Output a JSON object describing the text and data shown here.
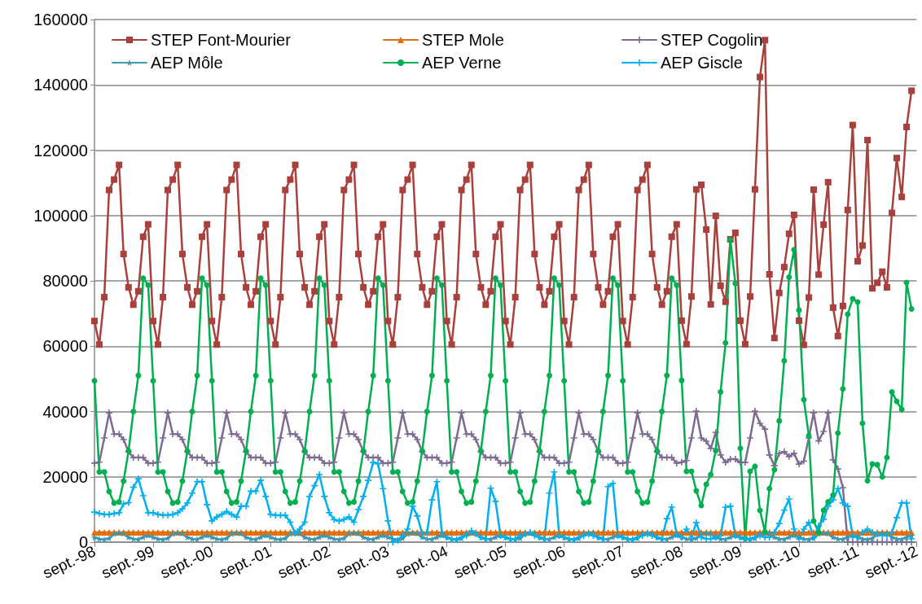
{
  "chart_data": {
    "type": "line",
    "ylim": [
      0,
      160000
    ],
    "yticks": [
      0,
      20000,
      40000,
      60000,
      80000,
      100000,
      120000,
      140000,
      160000
    ],
    "xlim": [
      "1998-09",
      "2012-09"
    ],
    "xticks": [
      {
        "value": "1998-09",
        "label": "sept.-98"
      },
      {
        "value": "1999-09",
        "label": "sept.-99"
      },
      {
        "value": "2000-09",
        "label": "sept.-00"
      },
      {
        "value": "2001-09",
        "label": "sept.-01"
      },
      {
        "value": "2002-09",
        "label": "sept.-02"
      },
      {
        "value": "2003-09",
        "label": "sept.-03"
      },
      {
        "value": "2004-09",
        "label": "sept.-04"
      },
      {
        "value": "2005-09",
        "label": "sept.-05"
      },
      {
        "value": "2006-09",
        "label": "sept.-06"
      },
      {
        "value": "2007-09",
        "label": "sept.-07"
      },
      {
        "value": "2008-09",
        "label": "sept.-08"
      },
      {
        "value": "2009-09",
        "label": "sept.-09"
      },
      {
        "value": "2010-09",
        "label": "sept.-10"
      },
      {
        "value": "2011-09",
        "label": "sept.-11"
      },
      {
        "value": "2012-09",
        "label": "sept.-12"
      }
    ],
    "grid": "y",
    "legend": "top",
    "line_style": "solid",
    "x": [
      "1998-09",
      "1998-10",
      "1998-11",
      "1998-12",
      "1999-01",
      "1999-02",
      "1999-03",
      "1999-04",
      "1999-05",
      "1999-06",
      "1999-07",
      "1999-08",
      "1999-09",
      "1999-10",
      "1999-11",
      "1999-12",
      "2000-01",
      "2000-02",
      "2000-03",
      "2000-04",
      "2000-05",
      "2000-06",
      "2000-07",
      "2000-08",
      "2000-09",
      "2000-10",
      "2000-11",
      "2000-12",
      "2001-01",
      "2001-02",
      "2001-03",
      "2001-04",
      "2001-05",
      "2001-06",
      "2001-07",
      "2001-08",
      "2001-09",
      "2001-10",
      "2001-11",
      "2001-12",
      "2002-01",
      "2002-02",
      "2002-03",
      "2002-04",
      "2002-05",
      "2002-06",
      "2002-07",
      "2002-08",
      "2002-09",
      "2002-10",
      "2002-11",
      "2002-12",
      "2003-01",
      "2003-02",
      "2003-03",
      "2003-04",
      "2003-05",
      "2003-06",
      "2003-07",
      "2003-08",
      "2003-09",
      "2003-10",
      "2003-11",
      "2003-12",
      "2004-01",
      "2004-02",
      "2004-03",
      "2004-04",
      "2004-05",
      "2004-06",
      "2004-07",
      "2004-08",
      "2004-09",
      "2004-10",
      "2004-11",
      "2004-12",
      "2005-01",
      "2005-02",
      "2005-03",
      "2005-04",
      "2005-05",
      "2005-06",
      "2005-07",
      "2005-08",
      "2005-09",
      "2005-10",
      "2005-11",
      "2005-12",
      "2006-01",
      "2006-02",
      "2006-03",
      "2006-04",
      "2006-05",
      "2006-06",
      "2006-07",
      "2006-08",
      "2006-09",
      "2006-10",
      "2006-11",
      "2006-12",
      "2007-01",
      "2007-02",
      "2007-03",
      "2007-04",
      "2007-05",
      "2007-06",
      "2007-07",
      "2007-08",
      "2007-09",
      "2007-10",
      "2007-11",
      "2007-12",
      "2008-01",
      "2008-02",
      "2008-03",
      "2008-04",
      "2008-05",
      "2008-06",
      "2008-07",
      "2008-08",
      "2008-09",
      "2008-10",
      "2008-11",
      "2008-12",
      "2009-01",
      "2009-02",
      "2009-03",
      "2009-04",
      "2009-05",
      "2009-06",
      "2009-07",
      "2009-08",
      "2009-09",
      "2009-10",
      "2009-11",
      "2009-12",
      "2010-01",
      "2010-02",
      "2010-03",
      "2010-04",
      "2010-05",
      "2010-06",
      "2010-07",
      "2010-08",
      "2010-09",
      "2010-10",
      "2010-11",
      "2010-12",
      "2011-01",
      "2011-02",
      "2011-03",
      "2011-04",
      "2011-05",
      "2011-06",
      "2011-07",
      "2011-08",
      "2011-09",
      "2011-10",
      "2011-11",
      "2011-12",
      "2012-01",
      "2012-02",
      "2012-03",
      "2012-04",
      "2012-05",
      "2012-06",
      "2012-07",
      "2012-08"
    ],
    "series": [
      {
        "name": "STEP Font-Mourier",
        "color": "#a9403c",
        "marker": "square",
        "values": [
          67700,
          60500,
          75000,
          107800,
          111000,
          115500,
          88200,
          78000,
          72700,
          76800,
          93500,
          97300,
          67700,
          60500,
          75000,
          107800,
          111000,
          115500,
          88200,
          78000,
          72700,
          76800,
          93500,
          97300,
          67700,
          60500,
          75000,
          107800,
          111000,
          115500,
          88200,
          78000,
          72700,
          76800,
          93500,
          97300,
          67700,
          60500,
          75000,
          107800,
          111000,
          115500,
          88200,
          78000,
          72700,
          76800,
          93500,
          97300,
          67700,
          60500,
          75000,
          107800,
          111000,
          115500,
          88200,
          78000,
          72700,
          76800,
          93500,
          97300,
          67700,
          60500,
          75000,
          107800,
          111000,
          115500,
          88200,
          78000,
          72700,
          76800,
          93500,
          97300,
          67700,
          60500,
          75000,
          107800,
          111000,
          115500,
          88200,
          78000,
          72700,
          76800,
          93500,
          97300,
          67700,
          60500,
          75000,
          107800,
          111000,
          115500,
          88200,
          78000,
          72700,
          76800,
          93500,
          97300,
          67700,
          60500,
          75000,
          107800,
          111000,
          115500,
          88200,
          78000,
          72700,
          76800,
          93500,
          97300,
          67700,
          60500,
          75000,
          107800,
          111000,
          115500,
          88200,
          78000,
          72700,
          76800,
          93500,
          97300,
          67800,
          60600,
          75200,
          108000,
          109400,
          95700,
          72800,
          99900,
          78500,
          73600,
          92700,
          94700,
          67800,
          60600,
          75200,
          108000,
          142400,
          153700,
          82000,
          62500,
          76300,
          84200,
          94400,
          100200,
          67800,
          60400,
          74900,
          107900,
          81900,
          97200,
          110200,
          71800,
          63100,
          72300,
          101700,
          127700,
          86000,
          90800,
          123100,
          77700,
          79400,
          82800,
          78000,
          100800,
          117600,
          105700,
          127100,
          138200
        ]
      },
      {
        "name": "STEP Mole",
        "color": "#e46c0a",
        "marker": "triangle",
        "values": [
          3000,
          3000,
          3000,
          3000,
          3000,
          3000,
          3000,
          3000,
          3000,
          3000,
          3000,
          3000,
          3000,
          3000,
          3000,
          3000,
          3000,
          3000,
          3000,
          3000,
          3000,
          3000,
          3000,
          3000,
          3000,
          3000,
          3000,
          3000,
          3000,
          3000,
          3000,
          3000,
          3000,
          3000,
          3000,
          3000,
          3000,
          3000,
          3000,
          3000,
          3000,
          3000,
          3000,
          3000,
          3000,
          3000,
          3000,
          3000,
          3000,
          3000,
          3000,
          3000,
          3000,
          3000,
          3000,
          3000,
          3000,
          3000,
          3000,
          3000,
          3000,
          3000,
          3000,
          3000,
          3000,
          3000,
          3000,
          3000,
          3000,
          3000,
          3000,
          3000,
          3000,
          3000,
          3000,
          3000,
          3000,
          3000,
          3000,
          3000,
          3000,
          3000,
          3000,
          3000,
          3000,
          3000,
          3000,
          3000,
          3000,
          3000,
          3000,
          3000,
          3000,
          3000,
          3000,
          3000,
          3000,
          3000,
          3000,
          3000,
          3000,
          3000,
          3000,
          3000,
          3000,
          3000,
          3000,
          3000,
          3000,
          3000,
          3000,
          3000,
          3000,
          3000,
          3000,
          3000,
          3000,
          3000,
          3000,
          3000,
          3000,
          3000,
          3000,
          3000,
          3000,
          3000,
          3000,
          3000,
          3000,
          3000,
          3000,
          3000,
          3000,
          3000,
          3000,
          3000,
          3000,
          3000,
          3000,
          3000,
          3000,
          3000,
          3000,
          3000,
          3000,
          3000,
          3000,
          3000,
          3000,
          3000,
          3000,
          3000,
          3000,
          3000,
          3000,
          3000,
          3000,
          3000,
          3000,
          3000,
          3000,
          3000,
          3000,
          3000,
          3000,
          3000,
          3000,
          3000
        ]
      },
      {
        "name": "STEP Cogolin",
        "color": "#7e6b92",
        "marker": "cross",
        "values": [
          24200,
          24500,
          31900,
          39600,
          33100,
          33100,
          31400,
          27700,
          25900,
          25900,
          25900,
          24200,
          24200,
          24500,
          31900,
          39600,
          33100,
          33100,
          31400,
          27700,
          25900,
          25900,
          25900,
          24200,
          24200,
          24500,
          31900,
          39600,
          33100,
          33100,
          31400,
          27700,
          25900,
          25900,
          25900,
          24200,
          24200,
          24500,
          31900,
          39600,
          33100,
          33100,
          31400,
          27700,
          25900,
          25900,
          25900,
          24200,
          24200,
          24500,
          31900,
          39600,
          33100,
          33100,
          31400,
          27700,
          25900,
          25900,
          25900,
          24200,
          24200,
          24500,
          31900,
          39600,
          33100,
          33100,
          31400,
          27700,
          25900,
          25900,
          25900,
          24200,
          24200,
          24500,
          31900,
          39600,
          33100,
          33100,
          31400,
          27700,
          25900,
          25900,
          25900,
          24200,
          24200,
          24500,
          31900,
          39600,
          33100,
          33100,
          31400,
          27700,
          25900,
          25900,
          25900,
          24200,
          24200,
          24500,
          31900,
          39600,
          33100,
          33100,
          31400,
          27700,
          25900,
          25900,
          25900,
          24200,
          24200,
          24500,
          31900,
          39600,
          33100,
          33100,
          31400,
          27700,
          25900,
          25900,
          25900,
          24200,
          24500,
          25000,
          31900,
          40100,
          31900,
          30900,
          28700,
          33600,
          26700,
          24400,
          25400,
          25400,
          24400,
          24400,
          31900,
          40100,
          36400,
          34600,
          26700,
          23400,
          27200,
          27700,
          26200,
          27200,
          23900,
          24800,
          31900,
          39600,
          31000,
          33900,
          39600,
          25200,
          22400,
          16700,
          0,
          0,
          0,
          0,
          0,
          0,
          0,
          0,
          0,
          0,
          0,
          0,
          0,
          0
        ]
      },
      {
        "name": "AEP Môle",
        "color": "#3c97b0",
        "marker": "star",
        "values": [
          1500,
          1000,
          800,
          1200,
          2500,
          2800,
          2600,
          1500,
          1000,
          900,
          1500,
          2000,
          1500,
          1000,
          800,
          1200,
          2500,
          2800,
          2600,
          1500,
          1000,
          900,
          1500,
          2000,
          1500,
          1000,
          800,
          1200,
          2500,
          2800,
          2600,
          1500,
          1000,
          900,
          1500,
          2000,
          1500,
          1000,
          800,
          1200,
          2500,
          2800,
          2600,
          1500,
          1000,
          900,
          1500,
          2000,
          1500,
          1000,
          800,
          1200,
          2500,
          2800,
          2600,
          1500,
          1000,
          900,
          1500,
          2000,
          1500,
          1000,
          800,
          1200,
          2500,
          2800,
          2600,
          1500,
          1000,
          900,
          1500,
          2000,
          1500,
          1000,
          800,
          1200,
          2500,
          2800,
          2600,
          1500,
          1000,
          900,
          1500,
          2000,
          1500,
          1000,
          800,
          1200,
          2500,
          2800,
          2600,
          1500,
          1000,
          900,
          1500,
          2000,
          1500,
          1000,
          800,
          1200,
          2500,
          2800,
          2600,
          1500,
          1000,
          900,
          1500,
          2000,
          1500,
          1000,
          800,
          1200,
          2500,
          2800,
          2600,
          1500,
          1000,
          900,
          1500,
          2000,
          1500,
          1000,
          800,
          1200,
          2500,
          2800,
          2600,
          1500,
          1000,
          900,
          1500,
          2000,
          1500,
          1000,
          800,
          1200,
          2500,
          2800,
          2600,
          1500,
          1000,
          900,
          1500,
          2000,
          1500,
          1000,
          800,
          1200,
          2500,
          2800,
          2600,
          1500,
          1000,
          900,
          1500,
          2000,
          1500,
          1000,
          800,
          1200,
          2500,
          2800,
          2600,
          1500,
          1000,
          900,
          1500,
          2000
        ]
      },
      {
        "name": "AEP Verne",
        "color": "#00b050",
        "marker": "circle",
        "values": [
          49400,
          21500,
          21500,
          15500,
          12000,
          12300,
          18700,
          27900,
          40000,
          51000,
          80800,
          78700,
          49400,
          21500,
          21500,
          15500,
          12000,
          12300,
          18700,
          27900,
          40000,
          51000,
          80800,
          78700,
          49400,
          21500,
          21500,
          15500,
          12000,
          12300,
          18700,
          27900,
          40000,
          51000,
          80800,
          78700,
          49400,
          21500,
          21500,
          15500,
          12000,
          12300,
          18700,
          27900,
          40000,
          51000,
          80800,
          78700,
          49400,
          21500,
          21500,
          15500,
          12000,
          12300,
          18700,
          27900,
          40000,
          51000,
          80800,
          78700,
          49400,
          21500,
          21500,
          15500,
          12000,
          12300,
          18700,
          27900,
          40000,
          51000,
          80800,
          78700,
          49400,
          21500,
          21500,
          15500,
          12000,
          12300,
          18700,
          27900,
          40000,
          51000,
          80800,
          78700,
          49400,
          21500,
          21500,
          15500,
          12000,
          12300,
          18700,
          27900,
          40000,
          51000,
          80800,
          78700,
          49400,
          21500,
          21500,
          15500,
          12000,
          12300,
          18700,
          27900,
          40000,
          51000,
          80800,
          78700,
          49400,
          21500,
          21500,
          15500,
          12000,
          12300,
          18700,
          27900,
          40000,
          51000,
          80800,
          78700,
          49500,
          21700,
          21700,
          15700,
          11200,
          17700,
          20700,
          28000,
          46000,
          61000,
          92500,
          79200,
          28700,
          1200,
          21700,
          23200,
          9700,
          3200,
          16400,
          22200,
          37100,
          55500,
          81100,
          89500,
          71000,
          43600,
          32600,
          6500,
          3000,
          9800,
          12300,
          14400,
          33400,
          46900,
          69800,
          74500,
          73500,
          36400,
          18800,
          23900,
          23700,
          20000,
          25900,
          46000,
          43100,
          40600,
          79500,
          71400
        ]
      },
      {
        "name": "AEP Giscle",
        "color": "#00b0f0",
        "marker": "cross",
        "values": [
          9200,
          8800,
          8500,
          8500,
          8800,
          9000,
          11700,
          12100,
          16800,
          19400,
          14200,
          9000,
          9000,
          8500,
          8300,
          8300,
          8500,
          9000,
          10200,
          12000,
          15000,
          18500,
          18500,
          11500,
          6500,
          7700,
          8500,
          9400,
          8500,
          7700,
          11000,
          11000,
          15600,
          15600,
          18900,
          14000,
          8500,
          8200,
          8200,
          8200,
          6100,
          2700,
          4000,
          6100,
          14000,
          17300,
          20700,
          14000,
          9000,
          6900,
          6500,
          6900,
          7700,
          6100,
          10000,
          14000,
          18900,
          24400,
          24000,
          16400,
          6500,
          0,
          500,
          2000,
          4000,
          11000,
          8000,
          2500,
          3000,
          13000,
          18500,
          3000,
          1500,
          1000,
          800,
          1500,
          2000,
          3500,
          2500,
          1500,
          1000,
          16500,
          12500,
          2000,
          1500,
          1000,
          1000,
          2000,
          2500,
          3000,
          2000,
          1500,
          1000,
          15000,
          21500,
          2000,
          1500,
          1000,
          800,
          1500,
          2000,
          2500,
          2000,
          1500,
          1000,
          17000,
          18000,
          2000,
          1500,
          1000,
          800,
          1500,
          2000,
          2500,
          2000,
          1500,
          1000,
          7200,
          10700,
          2500,
          1500,
          4000,
          1500,
          6000,
          1500,
          1000,
          1000,
          1500,
          2000,
          10700,
          11000,
          2000,
          1500,
          1000,
          1000,
          1500,
          2000,
          1500,
          1500,
          3000,
          5700,
          9800,
          13200,
          4000,
          1000,
          4000,
          6000,
          1500,
          5000,
          7000,
          11000,
          13000,
          16400,
          12000,
          11000,
          2000,
          1500,
          3000,
          4000,
          3000,
          2500,
          2000,
          2000,
          3000,
          7500,
          12000,
          12000,
          1000
        ]
      }
    ]
  }
}
